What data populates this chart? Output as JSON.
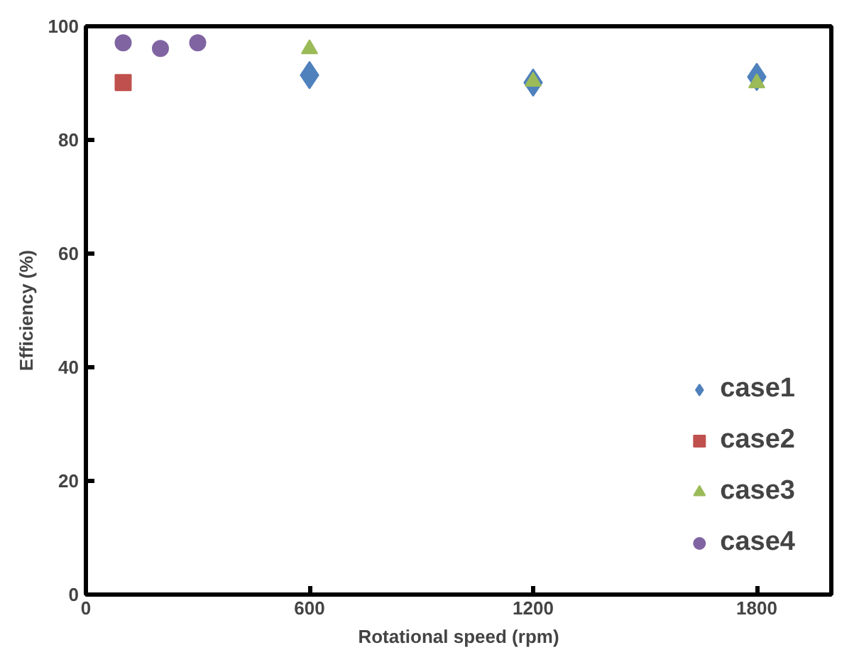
{
  "chart_data": {
    "type": "scatter",
    "xlabel": "Rotational speed (rpm)",
    "ylabel": "Efficiency (%)",
    "xlim": [
      0,
      2000
    ],
    "xticks": [
      0,
      600,
      1200,
      1800
    ],
    "ylim": [
      0,
      100
    ],
    "yticks": [
      0,
      20,
      40,
      60,
      80,
      100
    ],
    "grid": false,
    "legend": "bottom right",
    "series": [
      {
        "name": "case1",
        "color": "#4f81bd",
        "marker": "diamond",
        "x": [
          600,
          1200,
          1800
        ],
        "values": [
          91.4,
          90.1,
          91.1
        ]
      },
      {
        "name": "case2",
        "color": "#c0504d",
        "marker": "square",
        "x": [
          100
        ],
        "values": [
          90.1
        ]
      },
      {
        "name": "case3",
        "color": "#9bbb59",
        "marker": "triangle",
        "x": [
          600,
          1200,
          1800
        ],
        "values": [
          96.0,
          90.3,
          90.0
        ]
      },
      {
        "name": "case4",
        "color": "#8064a2",
        "marker": "circle",
        "x": [
          100,
          200,
          300
        ],
        "values": [
          97.1,
          96.1,
          97.1
        ]
      }
    ]
  }
}
